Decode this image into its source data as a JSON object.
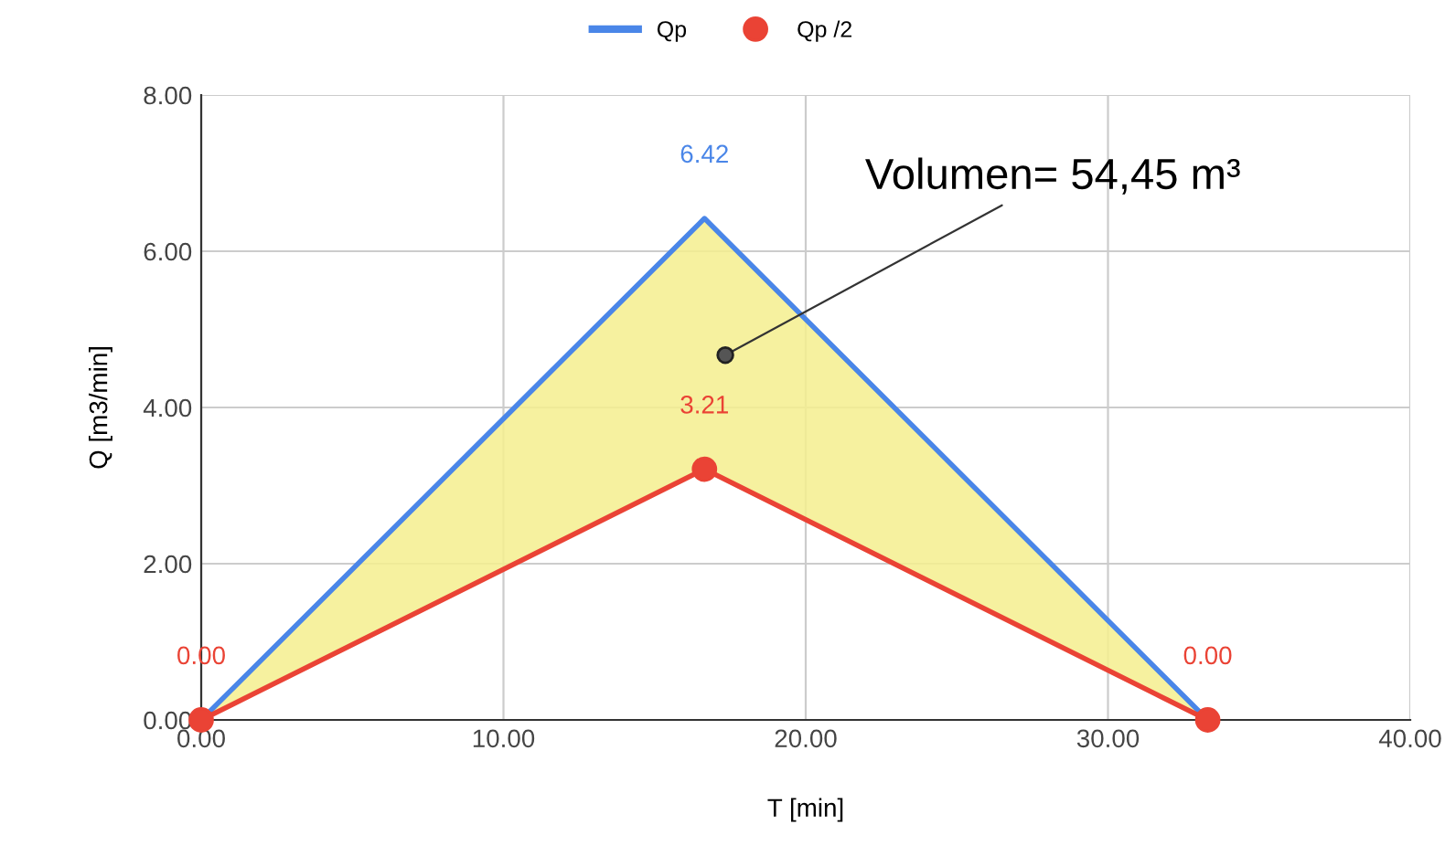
{
  "chart_data": {
    "type": "line",
    "xlabel": "T [min]",
    "ylabel": "Q [m3/min]",
    "x": [
      0,
      16.65,
      33.3
    ],
    "series": [
      {
        "name": "Qp",
        "color": "#4a86e8",
        "values": [
          0,
          6.42,
          0
        ],
        "marker": "none",
        "lower": [
          0,
          3.21,
          0
        ],
        "upper": [
          0,
          6.42,
          0
        ],
        "value_labels": [
          null,
          "6.42",
          null
        ]
      },
      {
        "name": "Qp /2",
        "color": "#ea4335",
        "values": [
          0,
          3.21,
          0
        ],
        "marker": "circle",
        "value_labels": [
          "0.00",
          "3.21",
          "0.00"
        ]
      }
    ],
    "xlim": [
      0,
      40
    ],
    "ylim": [
      0,
      8
    ],
    "xticks": [
      {
        "value": 0,
        "label": "0.00"
      },
      {
        "value": 10,
        "label": "10.00"
      },
      {
        "value": 20,
        "label": "20.00"
      },
      {
        "value": 30,
        "label": "30.00"
      },
      {
        "value": 40,
        "label": "40.00"
      }
    ],
    "yticks": [
      {
        "value": 0,
        "label": "0.00"
      },
      {
        "value": 2,
        "label": "2.00"
      },
      {
        "value": 4,
        "label": "4.00"
      },
      {
        "value": 6,
        "label": "6.00"
      },
      {
        "value": 8,
        "label": "8.00"
      }
    ],
    "grid": true,
    "legend": "top",
    "annotations": [
      {
        "text": "Volumen= 54,45 m³",
        "x": 17.34,
        "y": 4.67
      }
    ]
  }
}
